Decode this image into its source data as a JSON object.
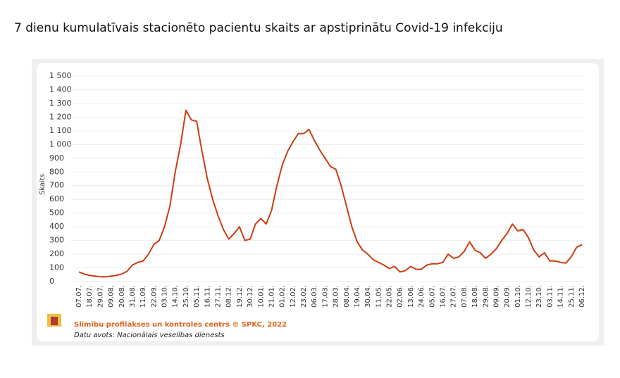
{
  "chart_data": {
    "type": "line",
    "title": "7 dienu kumulatīvais stacionēto pacientu skaits ar apstiprinātu Covid-19 infekciju",
    "ylabel": "Skaits",
    "source_org": "Slimību profilakses un kontroles centrs © SPKC, 2022",
    "source_data": "Datu avots: Nacionālais veselības dienests",
    "categories": [
      "07.07.",
      null,
      "18.07.",
      null,
      "29.07.",
      null,
      "09.08.",
      null,
      "20.08.",
      null,
      "31.08.",
      null,
      "11.09.",
      null,
      "22.09.",
      null,
      "03.10.",
      null,
      "14.10.",
      null,
      "25.10.",
      null,
      "05.11.",
      null,
      "16.11.",
      null,
      "27.11.",
      null,
      "08.12.",
      null,
      "19.12.",
      null,
      "30.12.",
      null,
      "10.01.",
      null,
      "21.01.",
      null,
      "01.02.",
      null,
      "12.02.",
      null,
      "23.02.",
      null,
      "06.03.",
      null,
      "17.03.",
      null,
      "28.03.",
      null,
      "08.04.",
      null,
      "19.04.",
      null,
      "30.04.",
      null,
      "11.05.",
      null,
      "22.05.",
      null,
      "02.06.",
      null,
      "13.06.",
      null,
      "24.06.",
      null,
      "05.07.",
      null,
      "16.07.",
      null,
      "27.07.",
      null,
      "07.08.",
      null,
      "18.08.",
      null,
      "29.08.",
      null,
      "09.09.",
      null,
      "20.09.",
      null,
      "01.10.",
      null,
      "12.10.",
      null,
      "23.10.",
      null,
      "03.11.",
      null,
      "14.11.",
      null,
      "25.11.",
      null,
      "06.12."
    ],
    "series": [
      {
        "color": "#cc3d12",
        "values": [
          70,
          55,
          45,
          40,
          35,
          35,
          40,
          45,
          55,
          75,
          120,
          140,
          150,
          200,
          270,
          300,
          400,
          550,
          800,
          1000,
          1250,
          1180,
          1170,
          950,
          750,
          600,
          480,
          380,
          310,
          350,
          400,
          300,
          310,
          420,
          460,
          420,
          520,
          700,
          850,
          950,
          1020,
          1080,
          1080,
          1110,
          1030,
          960,
          900,
          840,
          820,
          700,
          550,
          400,
          290,
          230,
          200,
          160,
          140,
          120,
          95,
          110,
          70,
          80,
          110,
          90,
          90,
          120,
          130,
          130,
          140,
          200,
          170,
          180,
          220,
          290,
          230,
          210,
          170,
          200,
          240,
          300,
          350,
          420,
          370,
          380,
          320,
          230,
          180,
          210,
          150,
          150,
          140,
          135,
          180,
          250,
          270
        ]
      }
    ],
    "ylim": [
      0,
      1500
    ],
    "yticks": [
      0,
      100,
      200,
      300,
      400,
      500,
      600,
      700,
      800,
      900,
      {
        "value": 1000,
        "label": "1 000"
      },
      {
        "value": 1100,
        "label": "1 100"
      },
      {
        "value": 1200,
        "label": "1 200"
      },
      {
        "value": 1300,
        "label": "1 300"
      },
      {
        "value": 1400,
        "label": "1 400"
      },
      {
        "value": 1500,
        "label": "1 500"
      }
    ],
    "grid": true
  }
}
